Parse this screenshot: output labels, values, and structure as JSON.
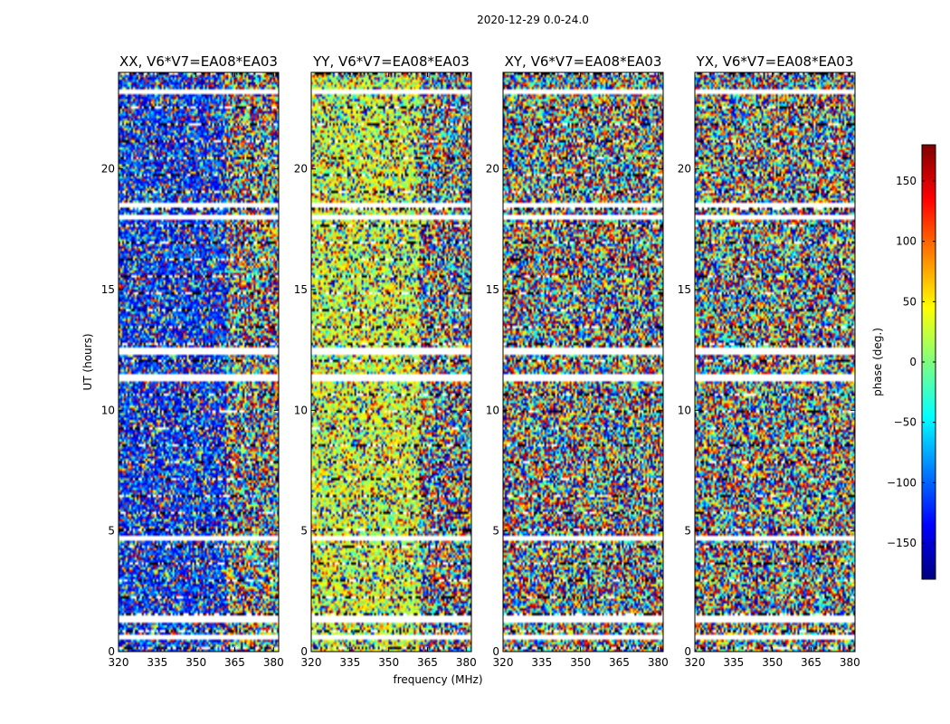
{
  "figure": {
    "suptitle": "2020-12-29 0.0-24.0",
    "xlabel": "frequency (MHz)",
    "ylabel": "UT (hours)",
    "colorbar_label": "phase (deg.)"
  },
  "chart_data": {
    "type": "heatmap",
    "x_range": [
      320,
      382
    ],
    "y_range": [
      0,
      24
    ],
    "x_ticks": [
      "320",
      "335",
      "350",
      "365",
      "380"
    ],
    "x_tick_values": [
      320,
      335,
      350,
      365,
      380
    ],
    "y_ticks": [
      "0",
      "5",
      "10",
      "15",
      "20"
    ],
    "y_tick_values": [
      0,
      5,
      10,
      15,
      20
    ],
    "colorbar": {
      "range": [
        -180,
        180
      ],
      "ticks": [
        "−150",
        "−100",
        "−50",
        "0",
        "50",
        "100",
        "150"
      ],
      "tick_values": [
        -150,
        -100,
        -50,
        0,
        50,
        100,
        150
      ],
      "colormap": "jet"
    },
    "panels": [
      {
        "title": "XX, V6*V7=EA08*EA03",
        "mean_phase": -120
      },
      {
        "title": "YY, V6*V7=EA08*EA03",
        "mean_phase": 30
      },
      {
        "title": "XY, V6*V7=EA08*EA03",
        "mean_phase": 0
      },
      {
        "title": "YX, V6*V7=EA08*EA03",
        "mean_phase": 0
      }
    ],
    "flagged_ut_hours": [
      [
        0.55,
        0.7
      ],
      [
        1.25,
        1.55
      ],
      [
        4.6,
        4.75
      ],
      [
        11.25,
        11.45
      ],
      [
        12.3,
        12.6
      ],
      [
        17.9,
        18.1
      ],
      [
        18.45,
        18.6
      ],
      [
        23.15,
        23.3
      ]
    ]
  }
}
